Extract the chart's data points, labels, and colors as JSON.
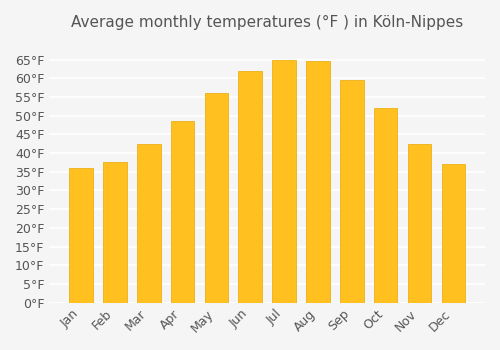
{
  "title": "Average monthly temperatures (°F ) in Köln-Nippes",
  "months": [
    "Jan",
    "Feb",
    "Mar",
    "Apr",
    "May",
    "Jun",
    "Jul",
    "Aug",
    "Sep",
    "Oct",
    "Nov",
    "Dec"
  ],
  "values": [
    36,
    37.5,
    42.5,
    48.5,
    56,
    62,
    65,
    64.5,
    59.5,
    52,
    42.5,
    37
  ],
  "bar_color": "#FFC020",
  "bar_edge_color": "#E8A800",
  "background_color": "#F5F5F5",
  "grid_color": "#FFFFFF",
  "text_color": "#555555",
  "ylim": [
    0,
    70
  ],
  "yticks": [
    0,
    5,
    10,
    15,
    20,
    25,
    30,
    35,
    40,
    45,
    50,
    55,
    60,
    65
  ],
  "ytick_labels": [
    "0°F",
    "5°F",
    "10°F",
    "15°F",
    "20°F",
    "25°F",
    "30°F",
    "35°F",
    "40°F",
    "45°F",
    "50°F",
    "55°F",
    "60°F",
    "65°F"
  ],
  "title_fontsize": 11,
  "tick_fontsize": 9
}
